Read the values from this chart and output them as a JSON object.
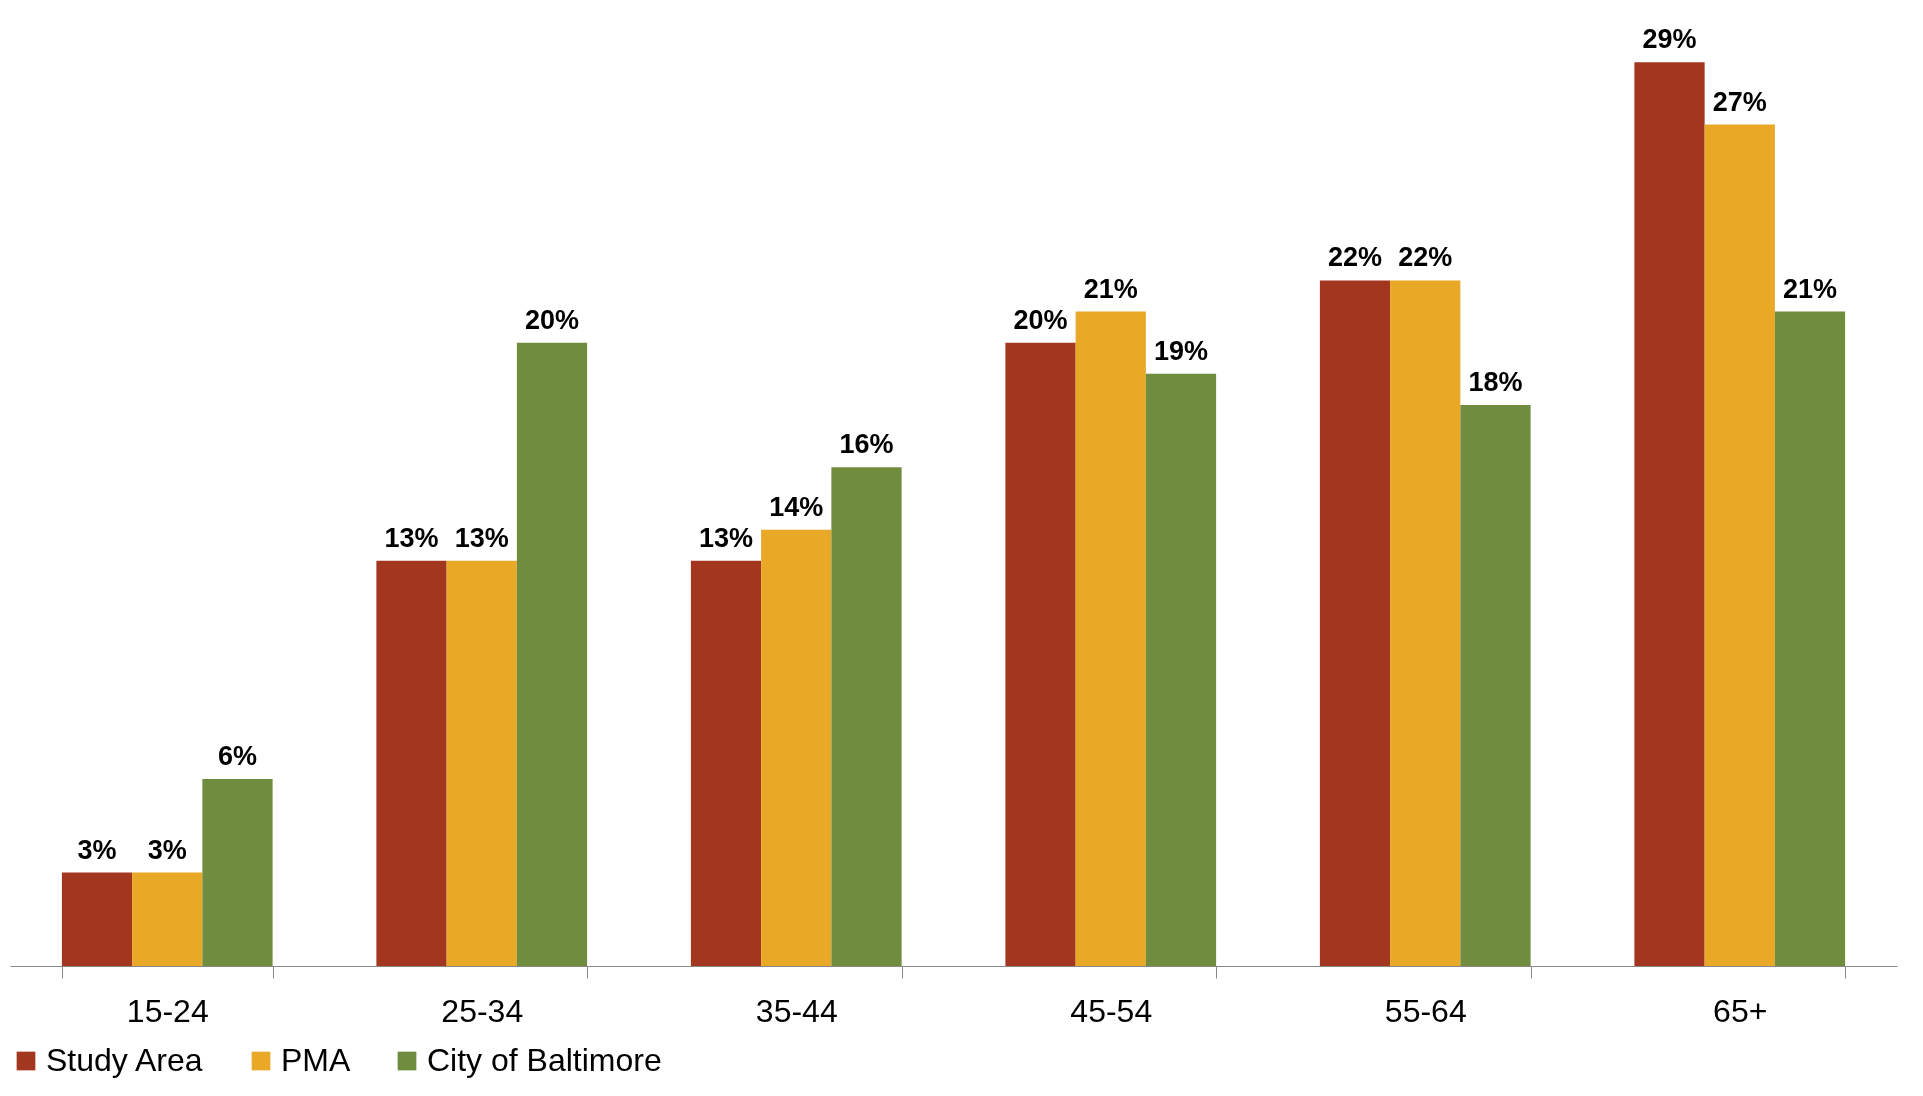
{
  "chart_data": {
    "type": "bar",
    "categories": [
      "15-24",
      "25-34",
      "35-44",
      "45-54",
      "55-64",
      "65+"
    ],
    "series": [
      {
        "name": "Study Area",
        "color": "#a3361f",
        "values": [
          3,
          13,
          13,
          20,
          22,
          29
        ],
        "value_labels": [
          "3%",
          "13%",
          "13%",
          "20%",
          "22%",
          "29%"
        ]
      },
      {
        "name": "PMA",
        "color": "#e9a825",
        "values": [
          3,
          13,
          14,
          21,
          22,
          27
        ],
        "value_labels": [
          "3%",
          "13%",
          "14%",
          "21%",
          "22%",
          "27%"
        ]
      },
      {
        "name": "City of Baltimore",
        "color": "#708c3e",
        "values": [
          6,
          20,
          16,
          19,
          18,
          21
        ],
        "value_labels": [
          "6%",
          "20%",
          "16%",
          "19%",
          "18%",
          "21%"
        ]
      }
    ],
    "legend": "bottom",
    "grid": false
  }
}
